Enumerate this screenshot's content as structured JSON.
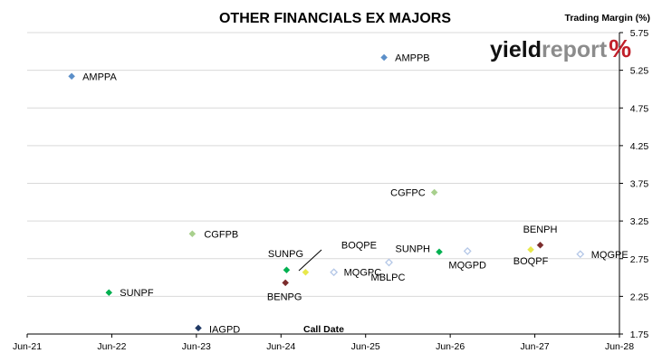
{
  "chart_data": {
    "type": "scatter",
    "title": "OTHER FINANCIALS EX MAJORS",
    "xlabel": "Call Date",
    "ylabel": "Trading Margin (%)",
    "x_ticks": [
      "Jun-21",
      "Jun-22",
      "Jun-23",
      "Jun-24",
      "Jun-25",
      "Jun-26",
      "Jun-27",
      "Jun-28"
    ],
    "y_ticks": [
      "1.75",
      "2.25",
      "2.75",
      "3.25",
      "3.75",
      "4.25",
      "4.75",
      "5.25",
      "5.75"
    ],
    "xlim": [
      "2021-06",
      "2028-06"
    ],
    "ylim": [
      1.75,
      5.75
    ],
    "y_axis_side": "right",
    "grid": "horizontal",
    "legend": "none",
    "points": [
      {
        "label": "AMPPA",
        "x": "2021-12-10",
        "y": 5.17,
        "color": "#5b8fc9",
        "fill": "filled"
      },
      {
        "label": "AMPPB",
        "x": "2025-08-20",
        "y": 5.42,
        "color": "#5b8fc9",
        "fill": "filled"
      },
      {
        "label": "CGFPC",
        "x": "2026-03-25",
        "y": 3.63,
        "color": "#a8d08d",
        "fill": "filled"
      },
      {
        "label": "CGFPB",
        "x": "2023-05-15",
        "y": 3.08,
        "color": "#a8d08d",
        "fill": "filled"
      },
      {
        "label": "SUNPF",
        "x": "2022-05-20",
        "y": 2.3,
        "color": "#00b050",
        "fill": "filled"
      },
      {
        "label": "IAGPD",
        "x": "2023-06-10",
        "y": 1.83,
        "color": "#1f3864",
        "fill": "filled"
      },
      {
        "label": "SUNPG",
        "x": "2024-06-25",
        "y": 2.6,
        "color": "#00b050",
        "fill": "filled"
      },
      {
        "label": "BENPG",
        "x": "2024-06-20",
        "y": 2.43,
        "color": "#7b2c2c",
        "fill": "filled"
      },
      {
        "label": "BOQPE",
        "x": "2024-09-15",
        "y": 2.57,
        "color": "#e8e84a",
        "fill": "filled"
      },
      {
        "label": "MQGPC",
        "x": "2025-01-15",
        "y": 2.57,
        "color": "#b4c7e7",
        "fill": "hollow"
      },
      {
        "label": "SUNPH",
        "x": "2026-04-15",
        "y": 2.84,
        "color": "#00b050",
        "fill": "filled"
      },
      {
        "label": "MQGPD",
        "x": "2026-08-15",
        "y": 2.85,
        "color": "#b4c7e7",
        "fill": "hollow"
      },
      {
        "label": "MBLPC",
        "x": "2025-09-10",
        "y": 2.7,
        "color": "#b4c7e7",
        "fill": "hollow"
      },
      {
        "label": "BENPH",
        "x": "2027-06-25",
        "y": 2.93,
        "color": "#7b2c2c",
        "fill": "filled"
      },
      {
        "label": "BOQPF",
        "x": "2027-05-15",
        "y": 2.87,
        "color": "#e8e84a",
        "fill": "filled"
      },
      {
        "label": "MQGPE",
        "x": "2027-12-15",
        "y": 2.81,
        "color": "#b4c7e7",
        "fill": "hollow"
      }
    ]
  },
  "logo": {
    "part1": "yield",
    "part2": "report",
    "part3": "%"
  }
}
